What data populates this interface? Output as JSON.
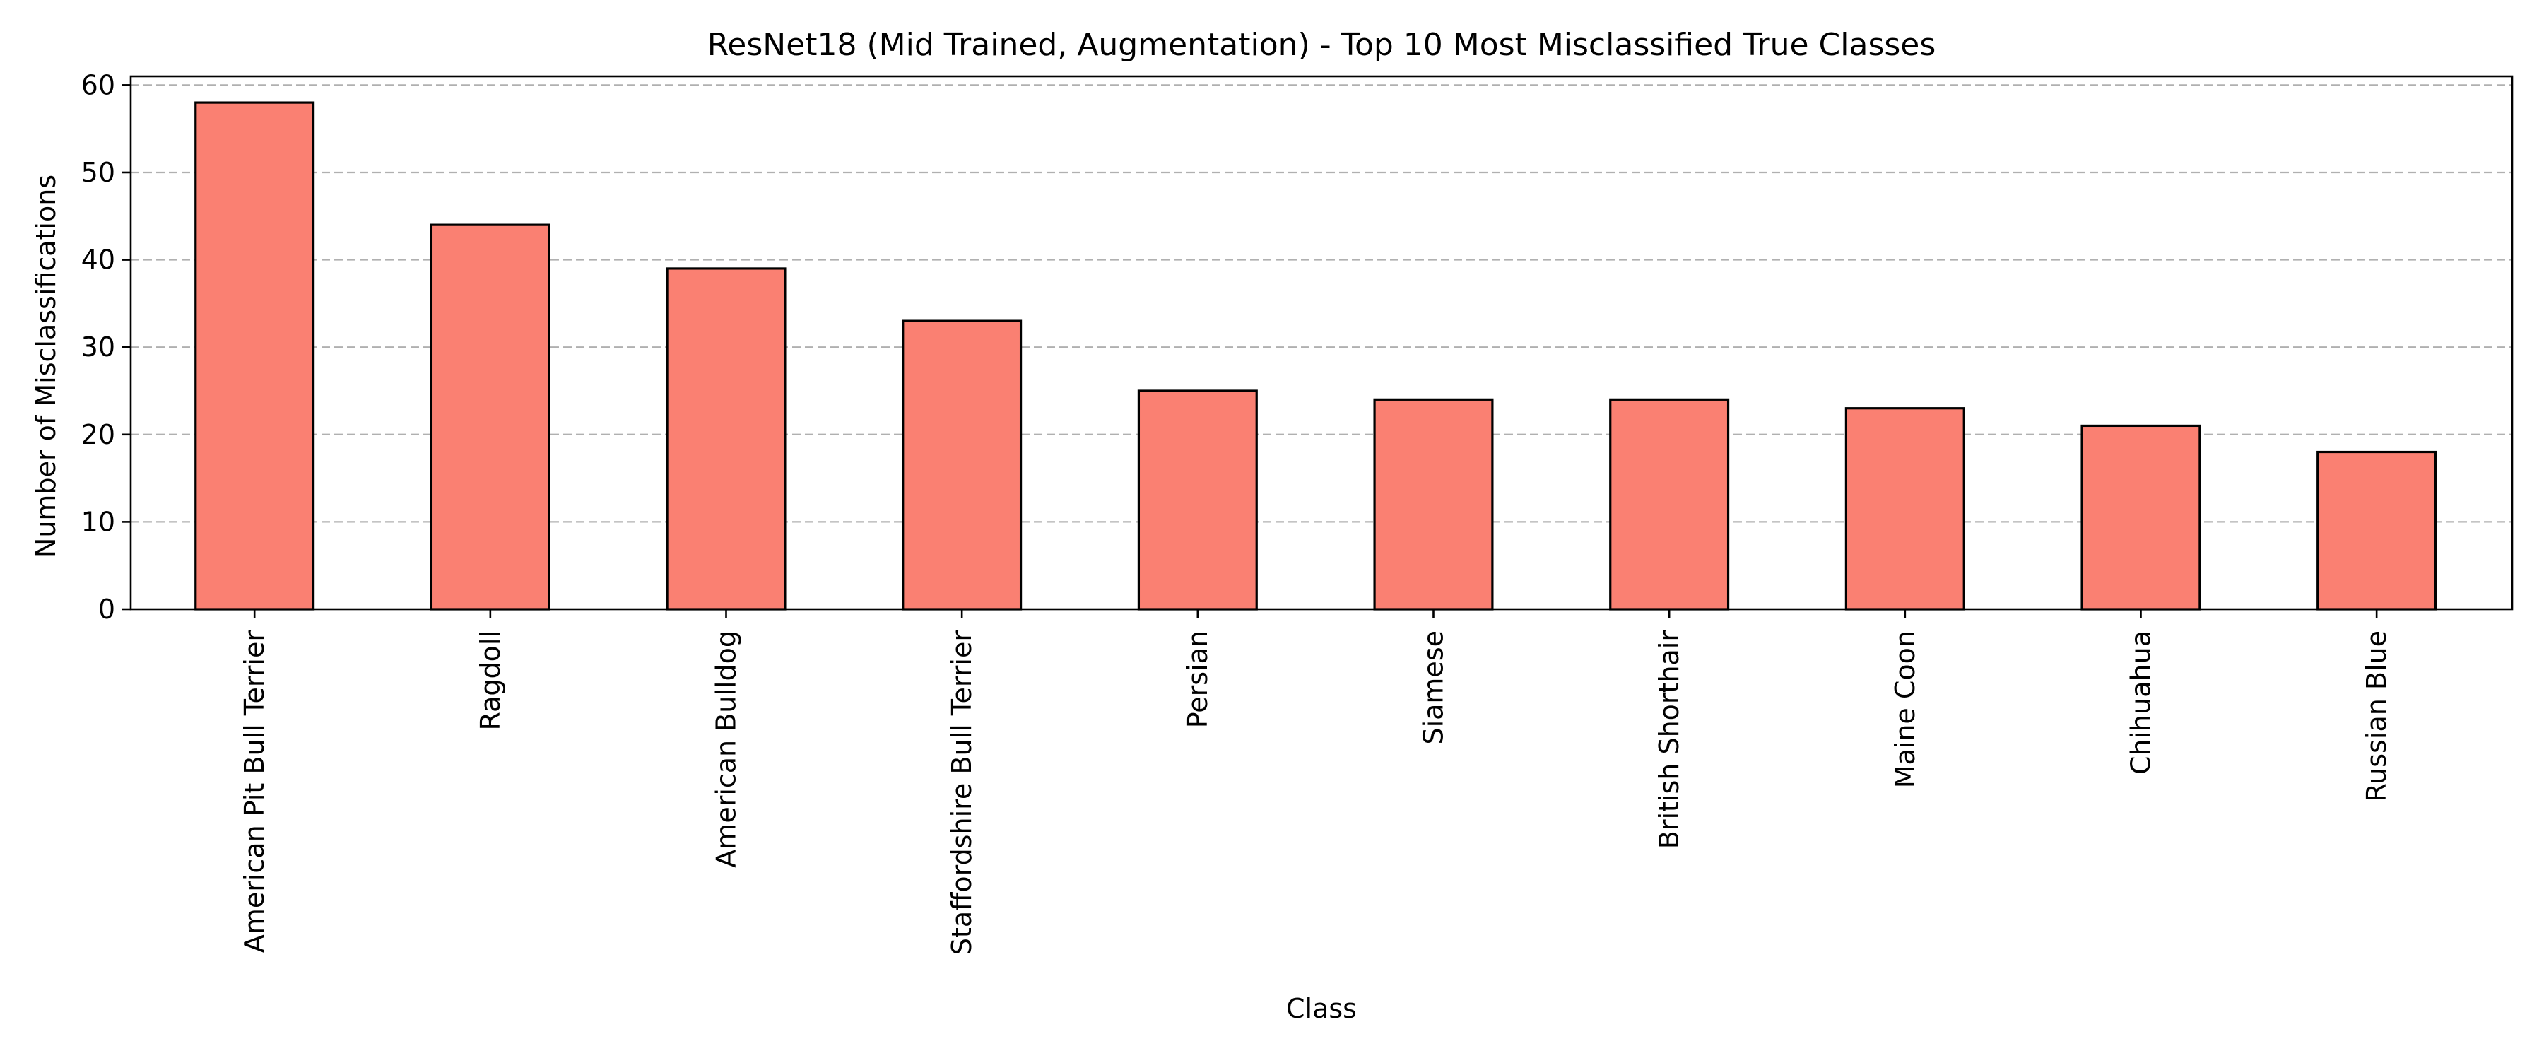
{
  "chart_data": {
    "type": "bar",
    "title": "ResNet18 (Mid Trained, Augmentation) - Top 10 Most Misclassified True Classes",
    "xlabel": "Class",
    "ylabel": "Number of Misclassifications",
    "categories": [
      "American Pit Bull Terrier",
      "Ragdoll",
      "American Bulldog",
      "Staffordshire Bull Terrier",
      "Persian",
      "Siamese",
      "British Shorthair",
      "Maine Coon",
      "Chihuahua",
      "Russian Blue"
    ],
    "values": [
      58,
      44,
      39,
      33,
      25,
      24,
      24,
      23,
      21,
      18
    ],
    "ylim": [
      0,
      61
    ],
    "yticks": [
      0,
      10,
      20,
      30,
      40,
      50,
      60
    ],
    "grid": "y-axis dashed",
    "bar_color": "#fa8072",
    "bar_edge_color": "#000000",
    "grid_color": "#b0b0b0"
  }
}
